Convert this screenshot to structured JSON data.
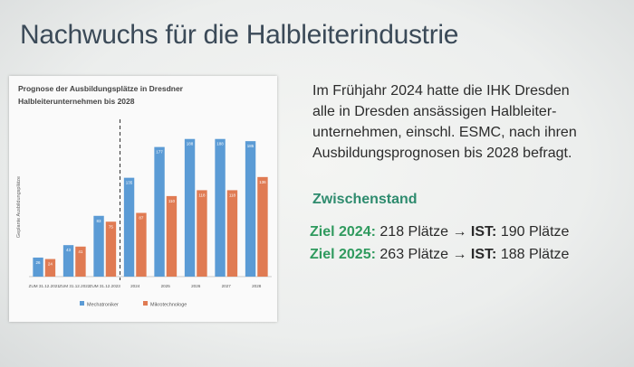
{
  "title": "Nachwuchs für die Halbleiterindustrie",
  "paragraph_lines": [
    "Im Frühjahr 2024 hatte die IHK Dresden",
    "alle in Dresden ansässigen Halbleiter-",
    "unternehmen, einschl. ESMC, nach ihren",
    "Ausbildungsprognosen bis 2028 befragt."
  ],
  "status": {
    "heading": "Zwischenstand",
    "rows": [
      {
        "label": "Ziel 2024:",
        "target": "218 Plätze",
        "arrow": "→",
        "ist_label": "IST:",
        "ist": "190 Plätze"
      },
      {
        "label": "Ziel 2025:",
        "target": "263 Plätze",
        "arrow": "→",
        "ist_label": "IST:",
        "ist": "188 Plätze"
      }
    ]
  },
  "chart_data": {
    "type": "bar",
    "title_lines": [
      "Prognose der Ausbildungsplätze in Dresdner",
      "Halbleiterunternehmen bis 2028"
    ],
    "y_label": "Geplante Ausbildungsplätze",
    "categories": [
      "ZUM 31.12.2021",
      "ZUM 31.12.2022",
      "ZUM 31.12.2023",
      "2024",
      "2025",
      "2026",
      "2027",
      "2028"
    ],
    "series": [
      {
        "name": "Mechatroniker",
        "color": "#5b9bd5",
        "values": [
          26,
          43,
          83,
          135,
          177,
          188,
          188,
          185
        ]
      },
      {
        "name": "Mikrotechnologe",
        "color": "#e07b53",
        "values": [
          24,
          41,
          75,
          87,
          110,
          118,
          118,
          136
        ]
      }
    ],
    "ylim": [
      0,
      200
    ]
  }
}
